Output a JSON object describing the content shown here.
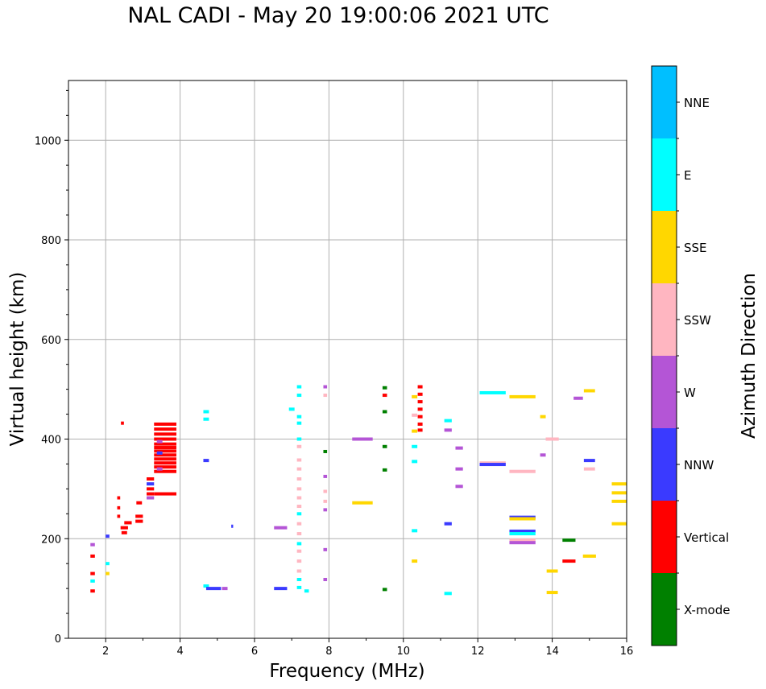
{
  "chart_data": {
    "type": "scatter",
    "title": "NAL CADI - May 20 19:00:06 2021 UTC",
    "xlabel": "Frequency (MHz)",
    "ylabel": "Virtual height (km)",
    "xlim": [
      1,
      16
    ],
    "ylim": [
      0,
      1120
    ],
    "xticks": [
      "2",
      "4",
      "6",
      "8",
      "10",
      "12",
      "14",
      "16"
    ],
    "yticks": [
      "0",
      "200",
      "400",
      "600",
      "800",
      "1000"
    ],
    "grid": true,
    "colorbar": {
      "label": "Azimuth Direction",
      "categories": [
        {
          "name": "X-mode",
          "color": "#008000"
        },
        {
          "name": "Vertical",
          "color": "#ff0000"
        },
        {
          "name": "NNW",
          "color": "#3a3aff"
        },
        {
          "name": "W",
          "color": "#b455d6"
        },
        {
          "name": "SSW",
          "color": "#ffb6c1"
        },
        {
          "name": "SSE",
          "color": "#ffd700"
        },
        {
          "name": "E",
          "color": "#00ffff"
        },
        {
          "name": "NNE",
          "color": "#00bfff"
        }
      ]
    },
    "points": [
      {
        "f": 3.6,
        "h": 430,
        "w": 0.6,
        "c": "Vertical"
      },
      {
        "f": 3.6,
        "h": 420,
        "w": 0.6,
        "c": "Vertical"
      },
      {
        "f": 3.6,
        "h": 410,
        "w": 0.6,
        "c": "Vertical"
      },
      {
        "f": 3.6,
        "h": 400,
        "w": 0.6,
        "c": "Vertical"
      },
      {
        "f": 3.6,
        "h": 390,
        "w": 0.6,
        "c": "Vertical"
      },
      {
        "f": 3.6,
        "h": 383,
        "w": 0.6,
        "c": "Vertical"
      },
      {
        "f": 3.6,
        "h": 376,
        "w": 0.6,
        "c": "Vertical"
      },
      {
        "f": 3.6,
        "h": 368,
        "w": 0.6,
        "c": "Vertical"
      },
      {
        "f": 3.6,
        "h": 360,
        "w": 0.6,
        "c": "Vertical"
      },
      {
        "f": 3.6,
        "h": 352,
        "w": 0.6,
        "c": "Vertical"
      },
      {
        "f": 3.6,
        "h": 344,
        "w": 0.6,
        "c": "Vertical"
      },
      {
        "f": 3.6,
        "h": 335,
        "w": 0.6,
        "c": "Vertical"
      },
      {
        "f": 3.6,
        "h": 290,
        "w": 0.6,
        "c": "Vertical"
      },
      {
        "f": 3.45,
        "h": 395,
        "w": 0.15,
        "c": "W"
      },
      {
        "f": 3.45,
        "h": 372,
        "w": 0.15,
        "c": "NNW"
      },
      {
        "f": 3.45,
        "h": 340,
        "w": 0.15,
        "c": "W"
      },
      {
        "f": 3.2,
        "h": 320,
        "w": 0.2,
        "c": "Vertical"
      },
      {
        "f": 3.2,
        "h": 310,
        "w": 0.2,
        "c": "NNW"
      },
      {
        "f": 3.2,
        "h": 300,
        "w": 0.2,
        "c": "Vertical"
      },
      {
        "f": 3.2,
        "h": 290,
        "w": 0.2,
        "c": "Vertical"
      },
      {
        "f": 3.2,
        "h": 282,
        "w": 0.2,
        "c": "W"
      },
      {
        "f": 2.9,
        "h": 245,
        "w": 0.2,
        "c": "Vertical"
      },
      {
        "f": 2.9,
        "h": 235,
        "w": 0.2,
        "c": "Vertical"
      },
      {
        "f": 2.9,
        "h": 272,
        "w": 0.15,
        "c": "Vertical"
      },
      {
        "f": 2.6,
        "h": 232,
        "w": 0.2,
        "c": "Vertical"
      },
      {
        "f": 2.5,
        "h": 222,
        "w": 0.2,
        "c": "Vertical"
      },
      {
        "f": 2.5,
        "h": 212,
        "w": 0.15,
        "c": "Vertical"
      },
      {
        "f": 2.35,
        "h": 282,
        "w": 0.08,
        "c": "Vertical"
      },
      {
        "f": 2.35,
        "h": 262,
        "w": 0.08,
        "c": "Vertical"
      },
      {
        "f": 2.35,
        "h": 245,
        "w": 0.08,
        "c": "Vertical"
      },
      {
        "f": 2.45,
        "h": 432,
        "w": 0.08,
        "c": "Vertical"
      },
      {
        "f": 1.65,
        "h": 130,
        "w": 0.12,
        "c": "Vertical"
      },
      {
        "f": 1.65,
        "h": 115,
        "w": 0.12,
        "c": "E"
      },
      {
        "f": 1.65,
        "h": 95,
        "w": 0.12,
        "c": "Vertical"
      },
      {
        "f": 1.65,
        "h": 165,
        "w": 0.12,
        "c": "Vertical"
      },
      {
        "f": 1.65,
        "h": 188,
        "w": 0.12,
        "c": "W"
      },
      {
        "f": 2.05,
        "h": 150,
        "w": 0.1,
        "c": "E"
      },
      {
        "f": 2.05,
        "h": 130,
        "w": 0.1,
        "c": "SSE"
      },
      {
        "f": 2.05,
        "h": 205,
        "w": 0.1,
        "c": "NNW"
      },
      {
        "f": 4.7,
        "h": 440,
        "w": 0.15,
        "c": "E"
      },
      {
        "f": 4.7,
        "h": 455,
        "w": 0.15,
        "c": "E"
      },
      {
        "f": 4.7,
        "h": 357,
        "w": 0.15,
        "c": "NNW"
      },
      {
        "f": 4.7,
        "h": 105,
        "w": 0.15,
        "c": "E"
      },
      {
        "f": 4.9,
        "h": 100,
        "w": 0.4,
        "c": "NNW"
      },
      {
        "f": 5.2,
        "h": 100,
        "w": 0.15,
        "c": "W"
      },
      {
        "f": 5.4,
        "h": 225,
        "w": 0.05,
        "c": "NNW"
      },
      {
        "f": 6.7,
        "h": 100,
        "w": 0.35,
        "c": "NNW"
      },
      {
        "f": 6.7,
        "h": 222,
        "w": 0.35,
        "c": "W"
      },
      {
        "f": 7.0,
        "h": 460,
        "w": 0.15,
        "c": "E"
      },
      {
        "f": 7.2,
        "h": 505,
        "w": 0.12,
        "c": "E"
      },
      {
        "f": 7.2,
        "h": 488,
        "w": 0.12,
        "c": "E"
      },
      {
        "f": 7.2,
        "h": 445,
        "w": 0.12,
        "c": "E"
      },
      {
        "f": 7.2,
        "h": 432,
        "w": 0.12,
        "c": "E"
      },
      {
        "f": 7.2,
        "h": 400,
        "w": 0.12,
        "c": "E"
      },
      {
        "f": 7.2,
        "h": 385,
        "w": 0.12,
        "c": "SSW"
      },
      {
        "f": 7.2,
        "h": 358,
        "w": 0.12,
        "c": "SSW"
      },
      {
        "f": 7.2,
        "h": 340,
        "w": 0.12,
        "c": "SSW"
      },
      {
        "f": 7.2,
        "h": 320,
        "w": 0.12,
        "c": "SSW"
      },
      {
        "f": 7.2,
        "h": 300,
        "w": 0.12,
        "c": "SSW"
      },
      {
        "f": 7.2,
        "h": 282,
        "w": 0.12,
        "c": "SSW"
      },
      {
        "f": 7.2,
        "h": 265,
        "w": 0.12,
        "c": "SSW"
      },
      {
        "f": 7.2,
        "h": 250,
        "w": 0.12,
        "c": "E"
      },
      {
        "f": 7.2,
        "h": 230,
        "w": 0.12,
        "c": "SSW"
      },
      {
        "f": 7.2,
        "h": 210,
        "w": 0.12,
        "c": "SSW"
      },
      {
        "f": 7.2,
        "h": 190,
        "w": 0.12,
        "c": "E"
      },
      {
        "f": 7.2,
        "h": 175,
        "w": 0.12,
        "c": "SSW"
      },
      {
        "f": 7.2,
        "h": 155,
        "w": 0.12,
        "c": "SSW"
      },
      {
        "f": 7.2,
        "h": 135,
        "w": 0.12,
        "c": "SSW"
      },
      {
        "f": 7.2,
        "h": 118,
        "w": 0.12,
        "c": "E"
      },
      {
        "f": 7.2,
        "h": 102,
        "w": 0.12,
        "c": "E"
      },
      {
        "f": 7.4,
        "h": 95,
        "w": 0.12,
        "c": "E"
      },
      {
        "f": 7.9,
        "h": 505,
        "w": 0.1,
        "c": "W"
      },
      {
        "f": 7.9,
        "h": 488,
        "w": 0.1,
        "c": "SSW"
      },
      {
        "f": 7.9,
        "h": 375,
        "w": 0.1,
        "c": "X-mode"
      },
      {
        "f": 7.9,
        "h": 325,
        "w": 0.1,
        "c": "W"
      },
      {
        "f": 7.9,
        "h": 295,
        "w": 0.1,
        "c": "SSW"
      },
      {
        "f": 7.9,
        "h": 275,
        "w": 0.1,
        "c": "SSW"
      },
      {
        "f": 7.9,
        "h": 258,
        "w": 0.1,
        "c": "W"
      },
      {
        "f": 7.9,
        "h": 178,
        "w": 0.1,
        "c": "W"
      },
      {
        "f": 7.9,
        "h": 118,
        "w": 0.1,
        "c": "W"
      },
      {
        "f": 8.9,
        "h": 400,
        "w": 0.55,
        "c": "W"
      },
      {
        "f": 8.9,
        "h": 272,
        "w": 0.55,
        "c": "SSE"
      },
      {
        "f": 9.5,
        "h": 503,
        "w": 0.12,
        "c": "X-mode"
      },
      {
        "f": 9.5,
        "h": 488,
        "w": 0.12,
        "c": "Vertical"
      },
      {
        "f": 9.5,
        "h": 455,
        "w": 0.12,
        "c": "X-mode"
      },
      {
        "f": 9.5,
        "h": 385,
        "w": 0.12,
        "c": "X-mode"
      },
      {
        "f": 9.5,
        "h": 338,
        "w": 0.12,
        "c": "X-mode"
      },
      {
        "f": 9.5,
        "h": 98,
        "w": 0.12,
        "c": "X-mode"
      },
      {
        "f": 10.45,
        "h": 505,
        "w": 0.13,
        "c": "Vertical"
      },
      {
        "f": 10.45,
        "h": 490,
        "w": 0.13,
        "c": "Vertical"
      },
      {
        "f": 10.45,
        "h": 475,
        "w": 0.13,
        "c": "Vertical"
      },
      {
        "f": 10.45,
        "h": 460,
        "w": 0.13,
        "c": "Vertical"
      },
      {
        "f": 10.45,
        "h": 445,
        "w": 0.13,
        "c": "Vertical"
      },
      {
        "f": 10.45,
        "h": 430,
        "w": 0.13,
        "c": "Vertical"
      },
      {
        "f": 10.45,
        "h": 418,
        "w": 0.13,
        "c": "Vertical"
      },
      {
        "f": 10.3,
        "h": 485,
        "w": 0.15,
        "c": "SSE"
      },
      {
        "f": 10.3,
        "h": 448,
        "w": 0.15,
        "c": "SSW"
      },
      {
        "f": 10.3,
        "h": 416,
        "w": 0.15,
        "c": "SSE"
      },
      {
        "f": 10.3,
        "h": 385,
        "w": 0.15,
        "c": "E"
      },
      {
        "f": 10.3,
        "h": 355,
        "w": 0.15,
        "c": "E"
      },
      {
        "f": 10.3,
        "h": 216,
        "w": 0.15,
        "c": "E"
      },
      {
        "f": 10.3,
        "h": 155,
        "w": 0.15,
        "c": "SSE"
      },
      {
        "f": 11.2,
        "h": 437,
        "w": 0.2,
        "c": "E"
      },
      {
        "f": 11.2,
        "h": 418,
        "w": 0.2,
        "c": "W"
      },
      {
        "f": 11.5,
        "h": 382,
        "w": 0.2,
        "c": "W"
      },
      {
        "f": 11.5,
        "h": 340,
        "w": 0.2,
        "c": "W"
      },
      {
        "f": 11.5,
        "h": 305,
        "w": 0.2,
        "c": "W"
      },
      {
        "f": 11.2,
        "h": 230,
        "w": 0.2,
        "c": "NNW"
      },
      {
        "f": 11.2,
        "h": 90,
        "w": 0.2,
        "c": "E"
      },
      {
        "f": 12.4,
        "h": 493,
        "w": 0.7,
        "c": "E"
      },
      {
        "f": 13.2,
        "h": 485,
        "w": 0.7,
        "c": "SSE"
      },
      {
        "f": 12.4,
        "h": 352,
        "w": 0.7,
        "c": "SSW"
      },
      {
        "f": 12.4,
        "h": 349,
        "w": 0.7,
        "c": "NNW"
      },
      {
        "f": 13.2,
        "h": 335,
        "w": 0.7,
        "c": "SSW"
      },
      {
        "f": 13.2,
        "h": 243,
        "w": 0.7,
        "c": "NNW"
      },
      {
        "f": 13.2,
        "h": 240,
        "w": 0.7,
        "c": "SSE"
      },
      {
        "f": 13.2,
        "h": 215,
        "w": 0.7,
        "c": "NNW"
      },
      {
        "f": 13.2,
        "h": 210,
        "w": 0.7,
        "c": "E"
      },
      {
        "f": 13.2,
        "h": 197,
        "w": 0.7,
        "c": "SSW"
      },
      {
        "f": 13.2,
        "h": 192,
        "w": 0.7,
        "c": "W"
      },
      {
        "f": 13.75,
        "h": 445,
        "w": 0.15,
        "c": "SSE"
      },
      {
        "f": 13.75,
        "h": 368,
        "w": 0.15,
        "c": "W"
      },
      {
        "f": 14.0,
        "h": 400,
        "w": 0.35,
        "c": "SSW"
      },
      {
        "f": 14.45,
        "h": 197,
        "w": 0.35,
        "c": "X-mode"
      },
      {
        "f": 14.45,
        "h": 155,
        "w": 0.35,
        "c": "Vertical"
      },
      {
        "f": 14.0,
        "h": 135,
        "w": 0.3,
        "c": "SSE"
      },
      {
        "f": 14.0,
        "h": 92,
        "w": 0.3,
        "c": "SSE"
      },
      {
        "f": 14.7,
        "h": 482,
        "w": 0.25,
        "c": "W"
      },
      {
        "f": 15.0,
        "h": 497,
        "w": 0.3,
        "c": "SSE"
      },
      {
        "f": 15.0,
        "h": 357,
        "w": 0.3,
        "c": "NNW"
      },
      {
        "f": 15.0,
        "h": 340,
        "w": 0.3,
        "c": "SSW"
      },
      {
        "f": 15.0,
        "h": 165,
        "w": 0.35,
        "c": "SSE"
      },
      {
        "f": 15.8,
        "h": 310,
        "w": 0.4,
        "c": "SSE"
      },
      {
        "f": 15.8,
        "h": 292,
        "w": 0.4,
        "c": "SSE"
      },
      {
        "f": 15.8,
        "h": 275,
        "w": 0.4,
        "c": "SSE"
      },
      {
        "f": 15.8,
        "h": 230,
        "w": 0.4,
        "c": "SSE"
      }
    ]
  }
}
